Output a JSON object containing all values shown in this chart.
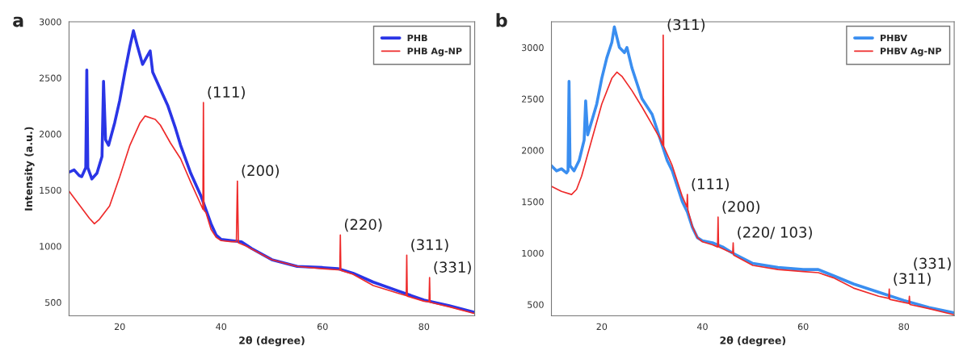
{
  "chart_data": [
    {
      "type": "line",
      "title": "a",
      "xlabel": "2θ (degree)",
      "ylabel": "Intensity (a.u.)",
      "xlim": [
        10,
        90
      ],
      "xticks": [
        20,
        40,
        60,
        80
      ],
      "ylim": [
        380,
        3000
      ],
      "yticks": [
        500,
        1000,
        1500,
        2000,
        2500,
        3000
      ],
      "legend": "top right",
      "series": [
        {
          "name": "PHB",
          "color": "#2a35e6",
          "x": [
            10,
            11,
            12,
            12.5,
            13.3,
            13.5,
            13.7,
            14.5,
            15.5,
            16.5,
            16.8,
            17.2,
            17.8,
            19,
            20,
            21,
            22,
            22.7,
            23.5,
            24.5,
            25.5,
            26,
            26.5,
            28,
            29.5,
            31,
            32,
            34,
            36,
            38,
            39,
            40,
            42,
            44,
            46,
            50,
            55,
            60,
            63,
            66,
            70,
            75,
            80,
            85,
            90
          ],
          "values": [
            1660,
            1680,
            1630,
            1620,
            1700,
            2570,
            1700,
            1600,
            1650,
            1800,
            2470,
            1950,
            1900,
            2100,
            2300,
            2550,
            2780,
            2920,
            2780,
            2620,
            2700,
            2740,
            2550,
            2400,
            2250,
            2050,
            1900,
            1650,
            1450,
            1200,
            1100,
            1060,
            1050,
            1040,
            980,
            880,
            820,
            810,
            800,
            760,
            680,
            600,
            520,
            470,
            410
          ]
        },
        {
          "name": "PHB Ag-NP",
          "color": "#ee2a2a",
          "x": [
            10,
            12,
            14,
            15,
            16,
            18,
            20,
            22,
            24,
            25,
            27,
            28,
            30,
            32,
            34,
            36,
            36.4,
            36.5,
            36.6,
            37,
            38,
            39,
            40,
            42,
            43,
            43.2,
            43.4,
            45,
            50,
            55,
            60,
            63,
            63.4,
            63.5,
            63.6,
            66,
            70,
            75,
            76.5,
            76.6,
            76.7,
            80,
            81,
            81.1,
            81.2,
            85,
            90
          ],
          "values": [
            1490,
            1370,
            1250,
            1200,
            1240,
            1360,
            1620,
            1900,
            2100,
            2160,
            2130,
            2080,
            1920,
            1780,
            1570,
            1370,
            1330,
            2280,
            1320,
            1300,
            1150,
            1080,
            1050,
            1040,
            1040,
            1580,
            1030,
            1000,
            880,
            820,
            800,
            790,
            790,
            1100,
            785,
            750,
            650,
            580,
            560,
            920,
            555,
            510,
            505,
            720,
            500,
            460,
            400
          ]
        }
      ],
      "annotations": [
        {
          "text": "(111)",
          "x": 36.5,
          "y": 2280
        },
        {
          "text": "(200)",
          "x": 43.2,
          "y": 1580
        },
        {
          "text": "(220)",
          "x": 63.5,
          "y": 1100
        },
        {
          "text": "(311)",
          "x": 76.6,
          "y": 920
        },
        {
          "text": "(331)",
          "x": 81.1,
          "y": 720
        }
      ]
    },
    {
      "type": "line",
      "title": "b",
      "xlabel": "2θ (degree)",
      "xlim": [
        10,
        90
      ],
      "xticks": [
        20,
        40,
        60,
        80
      ],
      "ylim": [
        390,
        3250
      ],
      "yticks": [
        500,
        1000,
        1500,
        2000,
        2500,
        3000
      ],
      "legend": "top right",
      "series": [
        {
          "name": "PHBV",
          "color": "#3a8ef0",
          "x": [
            10,
            11,
            12,
            13,
            13.3,
            13.5,
            13.7,
            14.5,
            15.5,
            16.5,
            16.8,
            17.2,
            19,
            20,
            21,
            22,
            22.5,
            23.5,
            24.5,
            25,
            26,
            27,
            28,
            30,
            32,
            33,
            34,
            35,
            36,
            37,
            38,
            39,
            40,
            42,
            44,
            46,
            50,
            55,
            60,
            63,
            66,
            70,
            75,
            80,
            85,
            90
          ],
          "values": [
            1850,
            1800,
            1820,
            1780,
            1800,
            2670,
            1850,
            1800,
            1900,
            2100,
            2480,
            2150,
            2450,
            2700,
            2900,
            3050,
            3200,
            3000,
            2950,
            3000,
            2800,
            2650,
            2500,
            2350,
            2050,
            1900,
            1800,
            1650,
            1500,
            1400,
            1250,
            1150,
            1120,
            1100,
            1060,
            1000,
            900,
            860,
            840,
            840,
            780,
            700,
            620,
            540,
            470,
            420
          ]
        },
        {
          "name": "PHBV Ag-NP",
          "color": "#ee2a2a",
          "x": [
            10,
            12,
            14,
            15,
            16,
            18,
            20,
            22,
            23,
            24,
            26,
            28,
            30,
            31.5,
            32.1,
            32.2,
            32.3,
            34,
            36,
            36.9,
            37,
            37.1,
            38,
            39,
            40,
            42,
            43,
            43.1,
            43.2,
            45,
            46,
            46.1,
            46.2,
            50,
            55,
            60,
            63,
            66,
            70,
            75,
            77,
            77.1,
            77.2,
            80,
            81,
            81.1,
            81.2,
            85,
            90
          ],
          "values": [
            1650,
            1600,
            1570,
            1620,
            1750,
            2100,
            2450,
            2700,
            2760,
            2720,
            2580,
            2420,
            2250,
            2120,
            2050,
            3120,
            2040,
            1850,
            1550,
            1450,
            1570,
            1420,
            1260,
            1150,
            1110,
            1080,
            1060,
            1350,
            1060,
            1020,
            1000,
            1100,
            980,
            880,
            840,
            820,
            810,
            760,
            660,
            580,
            560,
            650,
            550,
            520,
            510,
            580,
            500,
            460,
            400
          ]
        }
      ],
      "annotations": [
        {
          "text": "(311)",
          "x": 32.2,
          "y": 3120
        },
        {
          "text": "(111)",
          "x": 37,
          "y": 1570
        },
        {
          "text": "(200)",
          "x": 43.1,
          "y": 1350
        },
        {
          "text": "(220/ 103)",
          "x": 46.1,
          "y": 1100
        },
        {
          "text": "(311)",
          "x": 77.1,
          "y": 650
        },
        {
          "text": "(331)",
          "x": 81.1,
          "y": 580
        }
      ]
    }
  ]
}
